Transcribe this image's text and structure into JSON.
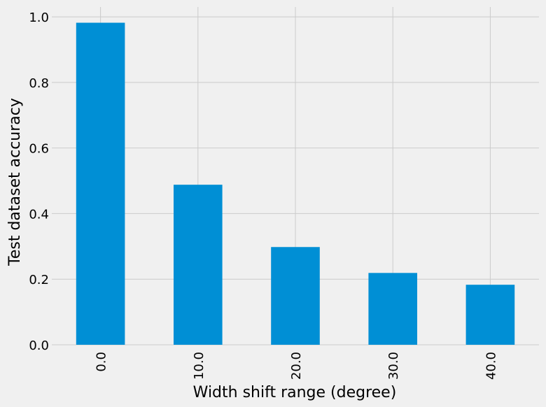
{
  "chart_data": {
    "type": "bar",
    "categories": [
      "0.0",
      "10.0",
      "20.0",
      "30.0",
      "40.0"
    ],
    "values": [
      0.982,
      0.488,
      0.298,
      0.219,
      0.183
    ],
    "xlabel": "Width shift range (degree)",
    "ylabel": "Test dataset accuracy",
    "ylim": [
      0,
      1.03
    ],
    "yticks": [
      "0.0",
      "0.2",
      "0.4",
      "0.6",
      "0.8",
      "1.0"
    ],
    "grid": true,
    "x_tick_rotation": "vertical",
    "colors": {
      "bar": "#008fd5",
      "background": "#f0f0f0",
      "grid": "#cbcbcb"
    }
  }
}
